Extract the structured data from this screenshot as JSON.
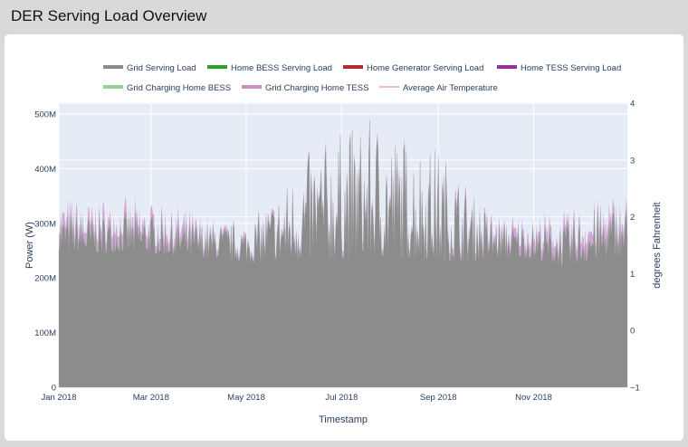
{
  "page": {
    "title": "DER Serving Load Overview"
  },
  "colors": {
    "grid_serving_load": "#8c8c8c",
    "home_bess_serving_load": "#2ca02c",
    "home_generator_serving_load": "#b2292e",
    "home_tess_serving_load": "#9b2d9b",
    "grid_charging_home_bess": "#98cf98",
    "grid_charging_home_tess": "#c990c9",
    "average_air_temperature": "#f0b8cf",
    "plot_bg": "#e5ecf6"
  },
  "chart_data": {
    "type": "area",
    "title": "",
    "xlabel": "Timestamp",
    "ylabel": "Power (W)",
    "y2label": "degrees Fahrenheit",
    "x_ticks": [
      "Jan 2018",
      "Mar 2018",
      "May 2018",
      "Jul 2018",
      "Sep 2018",
      "Nov 2018"
    ],
    "y_ticks": [
      "0",
      "100M",
      "200M",
      "300M",
      "400M",
      "500M"
    ],
    "y2_ticks": [
      "−1",
      "0",
      "1",
      "2",
      "3",
      "4"
    ],
    "ylim": [
      0,
      520000000
    ],
    "y2lim": [
      -1,
      4
    ],
    "xlim": [
      "2018-01-01",
      "2018-12-31"
    ],
    "legend_position": "top",
    "legend": [
      {
        "name": "Grid Serving Load",
        "key": "grid_serving_load",
        "visible": true
      },
      {
        "name": "Home BESS Serving Load",
        "key": "home_bess_serving_load",
        "visible": true
      },
      {
        "name": "Home Generator Serving Load",
        "key": "home_generator_serving_load",
        "visible": true
      },
      {
        "name": "Home TESS Serving Load",
        "key": "home_tess_serving_load",
        "visible": true
      },
      {
        "name": "Grid Charging Home BESS",
        "key": "grid_charging_home_bess",
        "visible": true
      },
      {
        "name": "Grid Charging Home TESS",
        "key": "grid_charging_home_tess",
        "visible": true
      },
      {
        "name": "Average Air Temperature",
        "key": "average_air_temperature",
        "visible": false
      }
    ],
    "series": [
      {
        "name": "Grid Serving Load",
        "x": [
          "2018-01-01",
          "2018-01-20",
          "2018-02-10",
          "2018-03-01",
          "2018-03-20",
          "2018-04-10",
          "2018-05-01",
          "2018-05-20",
          "2018-06-10",
          "2018-07-01",
          "2018-07-20",
          "2018-08-10",
          "2018-09-01",
          "2018-09-20",
          "2018-10-10",
          "2018-11-01",
          "2018-11-20",
          "2018-12-10",
          "2018-12-31"
        ],
        "baseline": [
          250000000,
          245000000,
          248000000,
          245000000,
          240000000,
          235000000,
          228000000,
          230000000,
          232000000,
          235000000,
          238000000,
          236000000,
          232000000,
          230000000,
          238000000,
          235000000,
          222000000,
          232000000,
          245000000
        ],
        "peak": [
          325000000,
          318000000,
          322000000,
          320000000,
          310000000,
          300000000,
          300000000,
          350000000,
          430000000,
          470000000,
          490000000,
          460000000,
          440000000,
          360000000,
          305000000,
          300000000,
          300000000,
          330000000,
          335000000
        ]
      },
      {
        "name": "Grid Charging Home TESS",
        "x": [
          "2018-01-01",
          "2018-02-10",
          "2018-03-20",
          "2018-04-20",
          "2018-10-10",
          "2018-11-20",
          "2018-12-31"
        ],
        "values": [
          35000000,
          32000000,
          28000000,
          12000000,
          20000000,
          30000000,
          35000000
        ]
      }
    ]
  }
}
